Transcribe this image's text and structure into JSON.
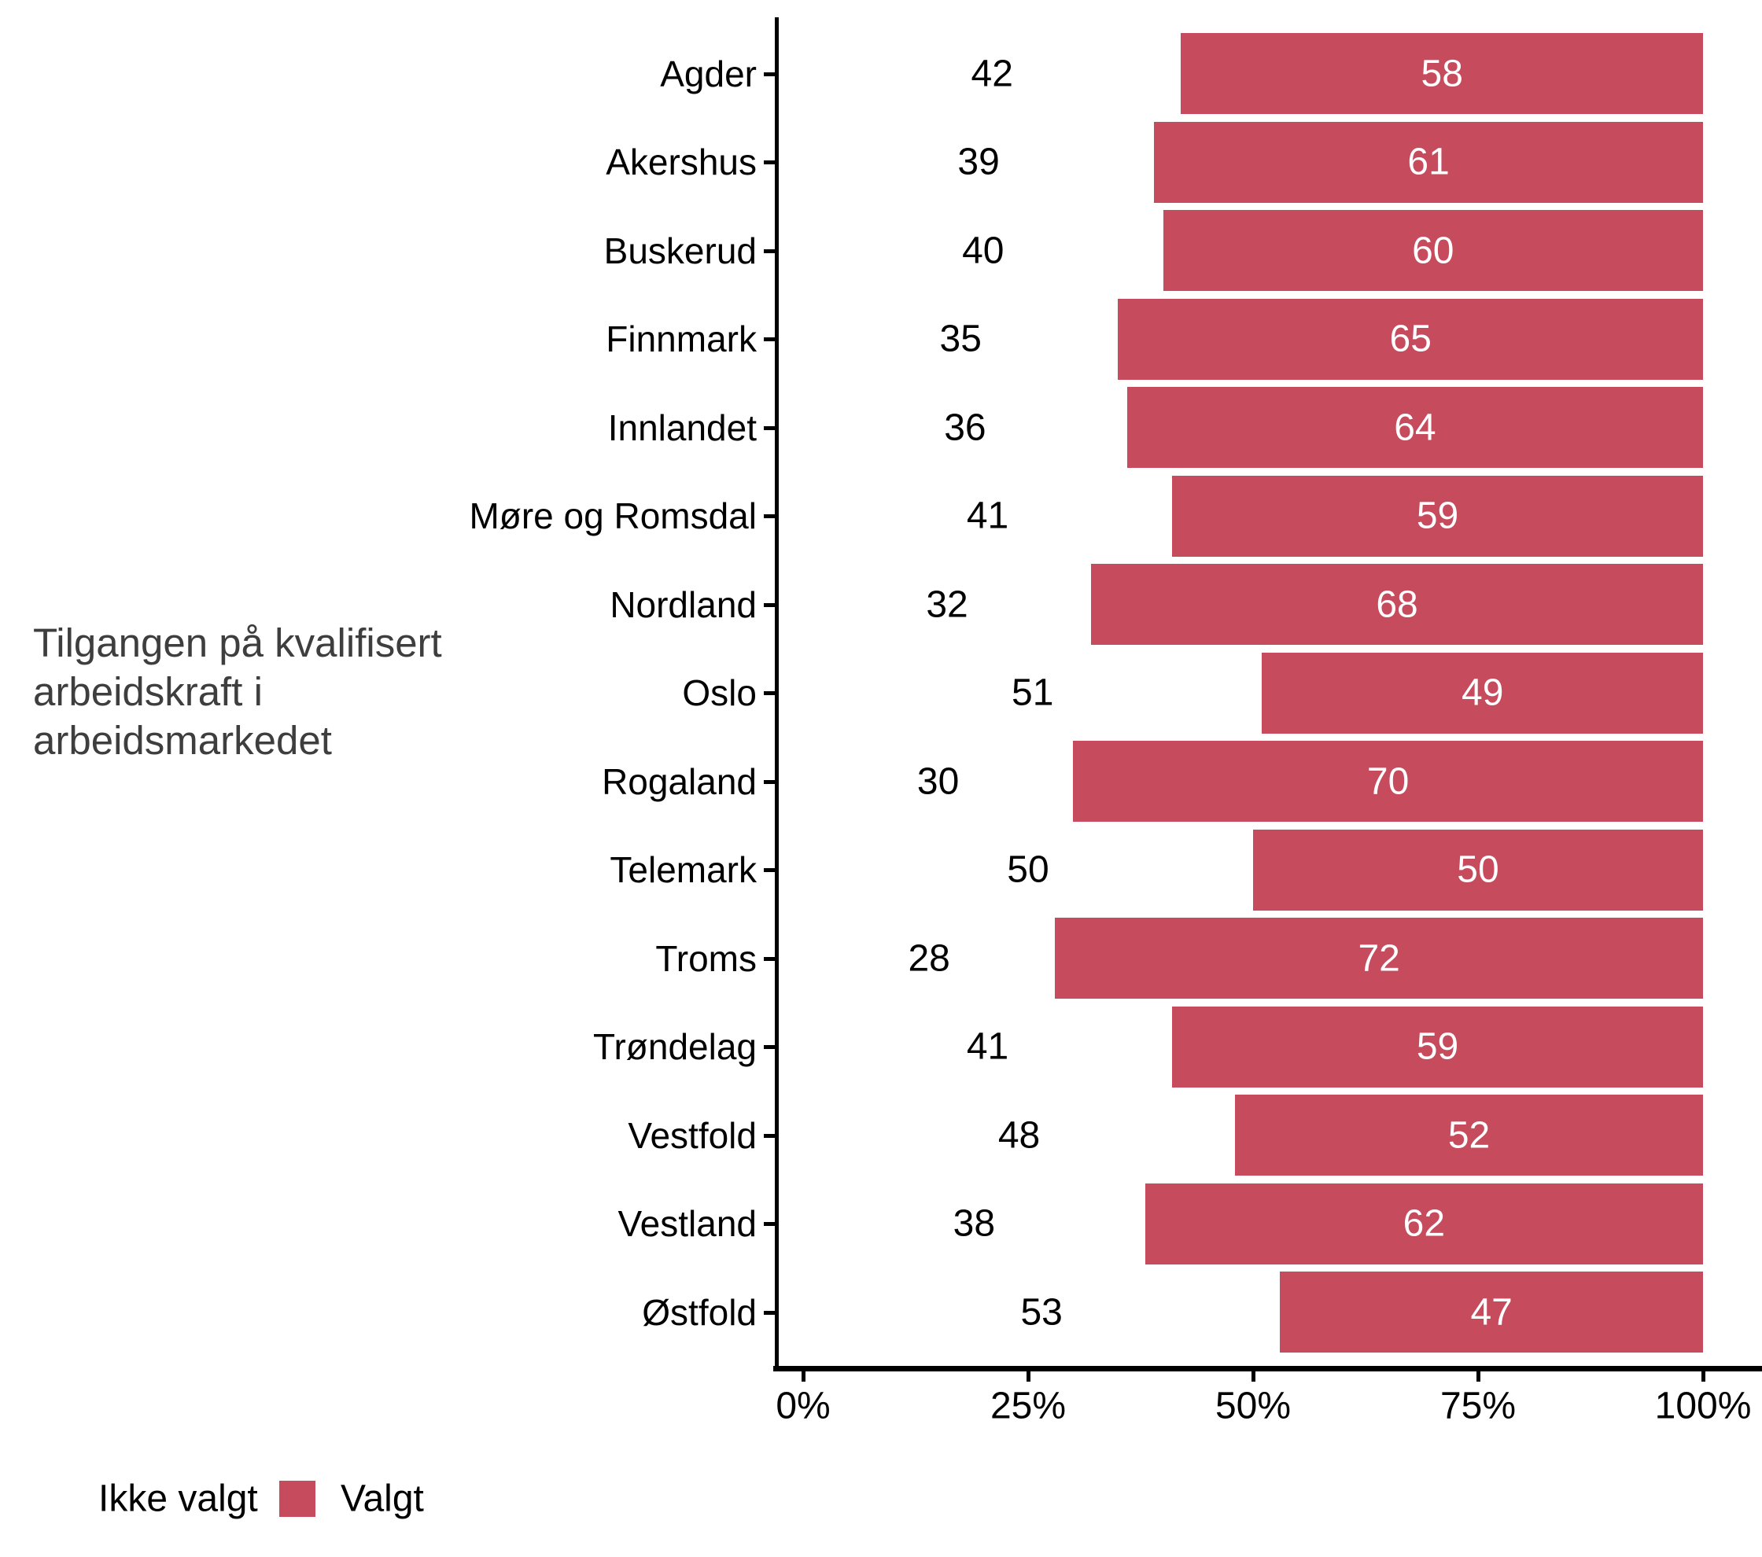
{
  "chart_data": {
    "type": "bar",
    "orientation": "horizontal",
    "stacked_percent": true,
    "title": "",
    "axis_title_lines": [
      "Tilgangen på kvalifisert",
      "arbeidskraft i",
      "arbeidsmarkedet"
    ],
    "axis_title": "Tilgangen på kvalifisert arbeidskraft i arbeidsmarkedet",
    "categories": [
      "Agder",
      "Akershus",
      "Buskerud",
      "Finnmark",
      "Innlandet",
      "Møre og Romsdal",
      "Nordland",
      "Oslo",
      "Rogaland",
      "Telemark",
      "Troms",
      "Trøndelag",
      "Vestfold",
      "Vestland",
      "Østfold"
    ],
    "series": [
      {
        "name": "Ikke valgt",
        "color": "#ffffff",
        "label_color": "#000000",
        "values": [
          42,
          39,
          40,
          35,
          36,
          41,
          32,
          51,
          30,
          50,
          28,
          41,
          48,
          38,
          53
        ]
      },
      {
        "name": "Valgt",
        "color": "#c64b5d",
        "label_color": "#ffffff",
        "values": [
          58,
          61,
          60,
          65,
          64,
          59,
          68,
          49,
          70,
          50,
          72,
          59,
          52,
          62,
          47
        ]
      }
    ],
    "x_axis": {
      "tick_labels": [
        "0%",
        "25%",
        "50%",
        "75%",
        "100%"
      ],
      "range": [
        0,
        100
      ],
      "grid": false
    },
    "legend": {
      "position": "bottom-left",
      "items": [
        "Ikke valgt",
        "Valgt"
      ]
    }
  },
  "colors": {
    "bar_valgt": "#c64b5d",
    "bar_ikke_valgt": "#ffffff",
    "axis_line": "#000000",
    "axis_title_text": "#3e3e3e",
    "tick_label_text": "#000000"
  }
}
